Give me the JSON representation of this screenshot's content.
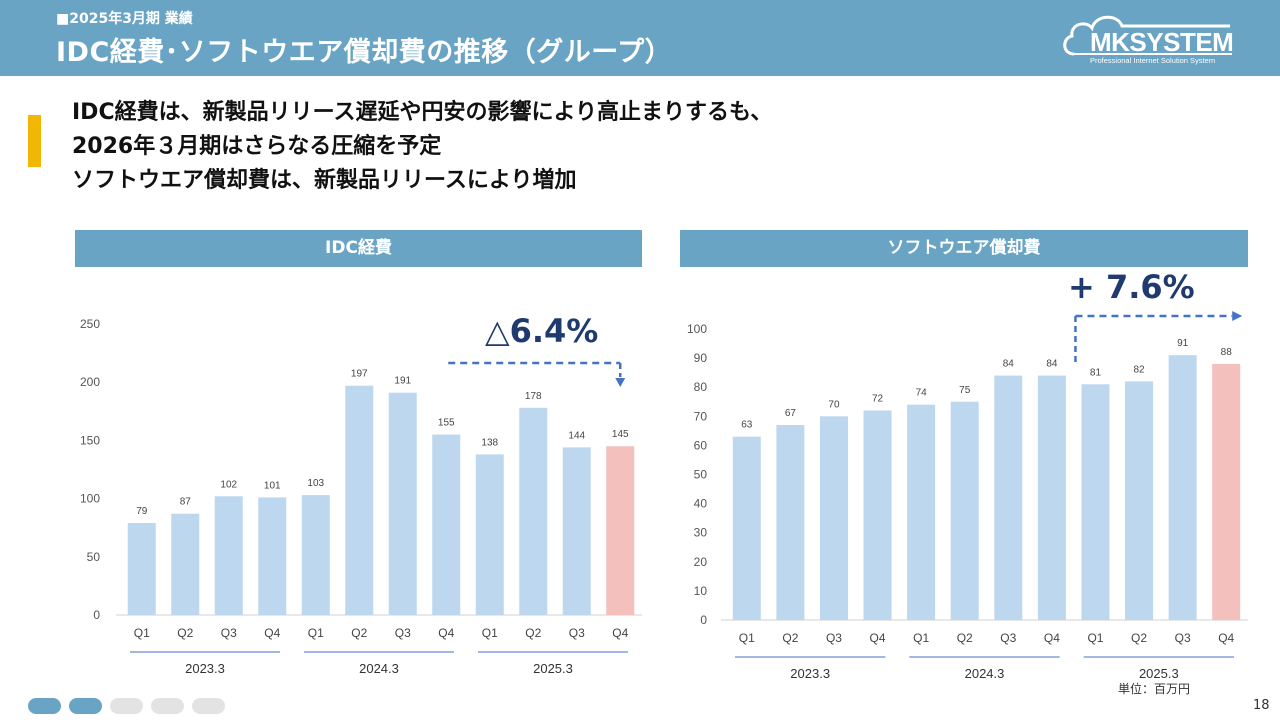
{
  "header": {
    "subtitle": "■2025年3月期 業績",
    "title": "IDC経費･ソフトウエア償却費の推移（グループ）"
  },
  "logo": {
    "name": "MKSYSTEM",
    "tagline": "Professional Internet Solution System"
  },
  "lead": {
    "lines": [
      "IDC経費は、新製品リリース遅延や円安の影響により高止まりするも、",
      "2026年３月期はさらなる圧縮を予定",
      "ソフトウエア償却費は、新製品リリースにより増加"
    ]
  },
  "panels": {
    "left_title": "IDC経費",
    "right_title": "ソフトウエア償却費"
  },
  "colors": {
    "header": "#6aa4c4",
    "bar": "#bdd7ee",
    "bar_highlight": "#f4c0be",
    "accent": "#f2b705",
    "annotation": "#4472c4",
    "annotation_text": "#1e3a6e"
  },
  "chart_data": [
    {
      "type": "bar",
      "title": "IDC経費",
      "categories": [
        "Q1",
        "Q2",
        "Q3",
        "Q4",
        "Q1",
        "Q2",
        "Q3",
        "Q4",
        "Q1",
        "Q2",
        "Q3",
        "Q4"
      ],
      "groups": [
        "2023.3",
        "2024.3",
        "2025.3"
      ],
      "values": [
        79,
        87,
        102,
        101,
        103,
        197,
        191,
        155,
        138,
        178,
        144,
        145
      ],
      "highlight_index": 11,
      "ylim": [
        0,
        250
      ],
      "yticks": [
        0,
        50,
        100,
        150,
        200,
        250
      ],
      "annotation": "△6.4%",
      "xlabel": "",
      "ylabel": ""
    },
    {
      "type": "bar",
      "title": "ソフトウエア償却費",
      "categories": [
        "Q1",
        "Q2",
        "Q3",
        "Q4",
        "Q1",
        "Q2",
        "Q3",
        "Q4",
        "Q1",
        "Q2",
        "Q3",
        "Q4"
      ],
      "groups": [
        "2023.3",
        "2024.3",
        "2025.3"
      ],
      "values": [
        63,
        67,
        70,
        72,
        74,
        75,
        84,
        84,
        81,
        82,
        91,
        88
      ],
      "highlight_index": 11,
      "ylim": [
        0,
        100
      ],
      "yticks": [
        0,
        10,
        20,
        30,
        40,
        50,
        60,
        70,
        80,
        90,
        100
      ],
      "annotation": "+ 7.6%",
      "xlabel": "",
      "ylabel": ""
    }
  ],
  "unit_label": "単位：百万円",
  "page_number": "18",
  "pager": {
    "total": 5,
    "active": [
      0,
      1
    ]
  }
}
